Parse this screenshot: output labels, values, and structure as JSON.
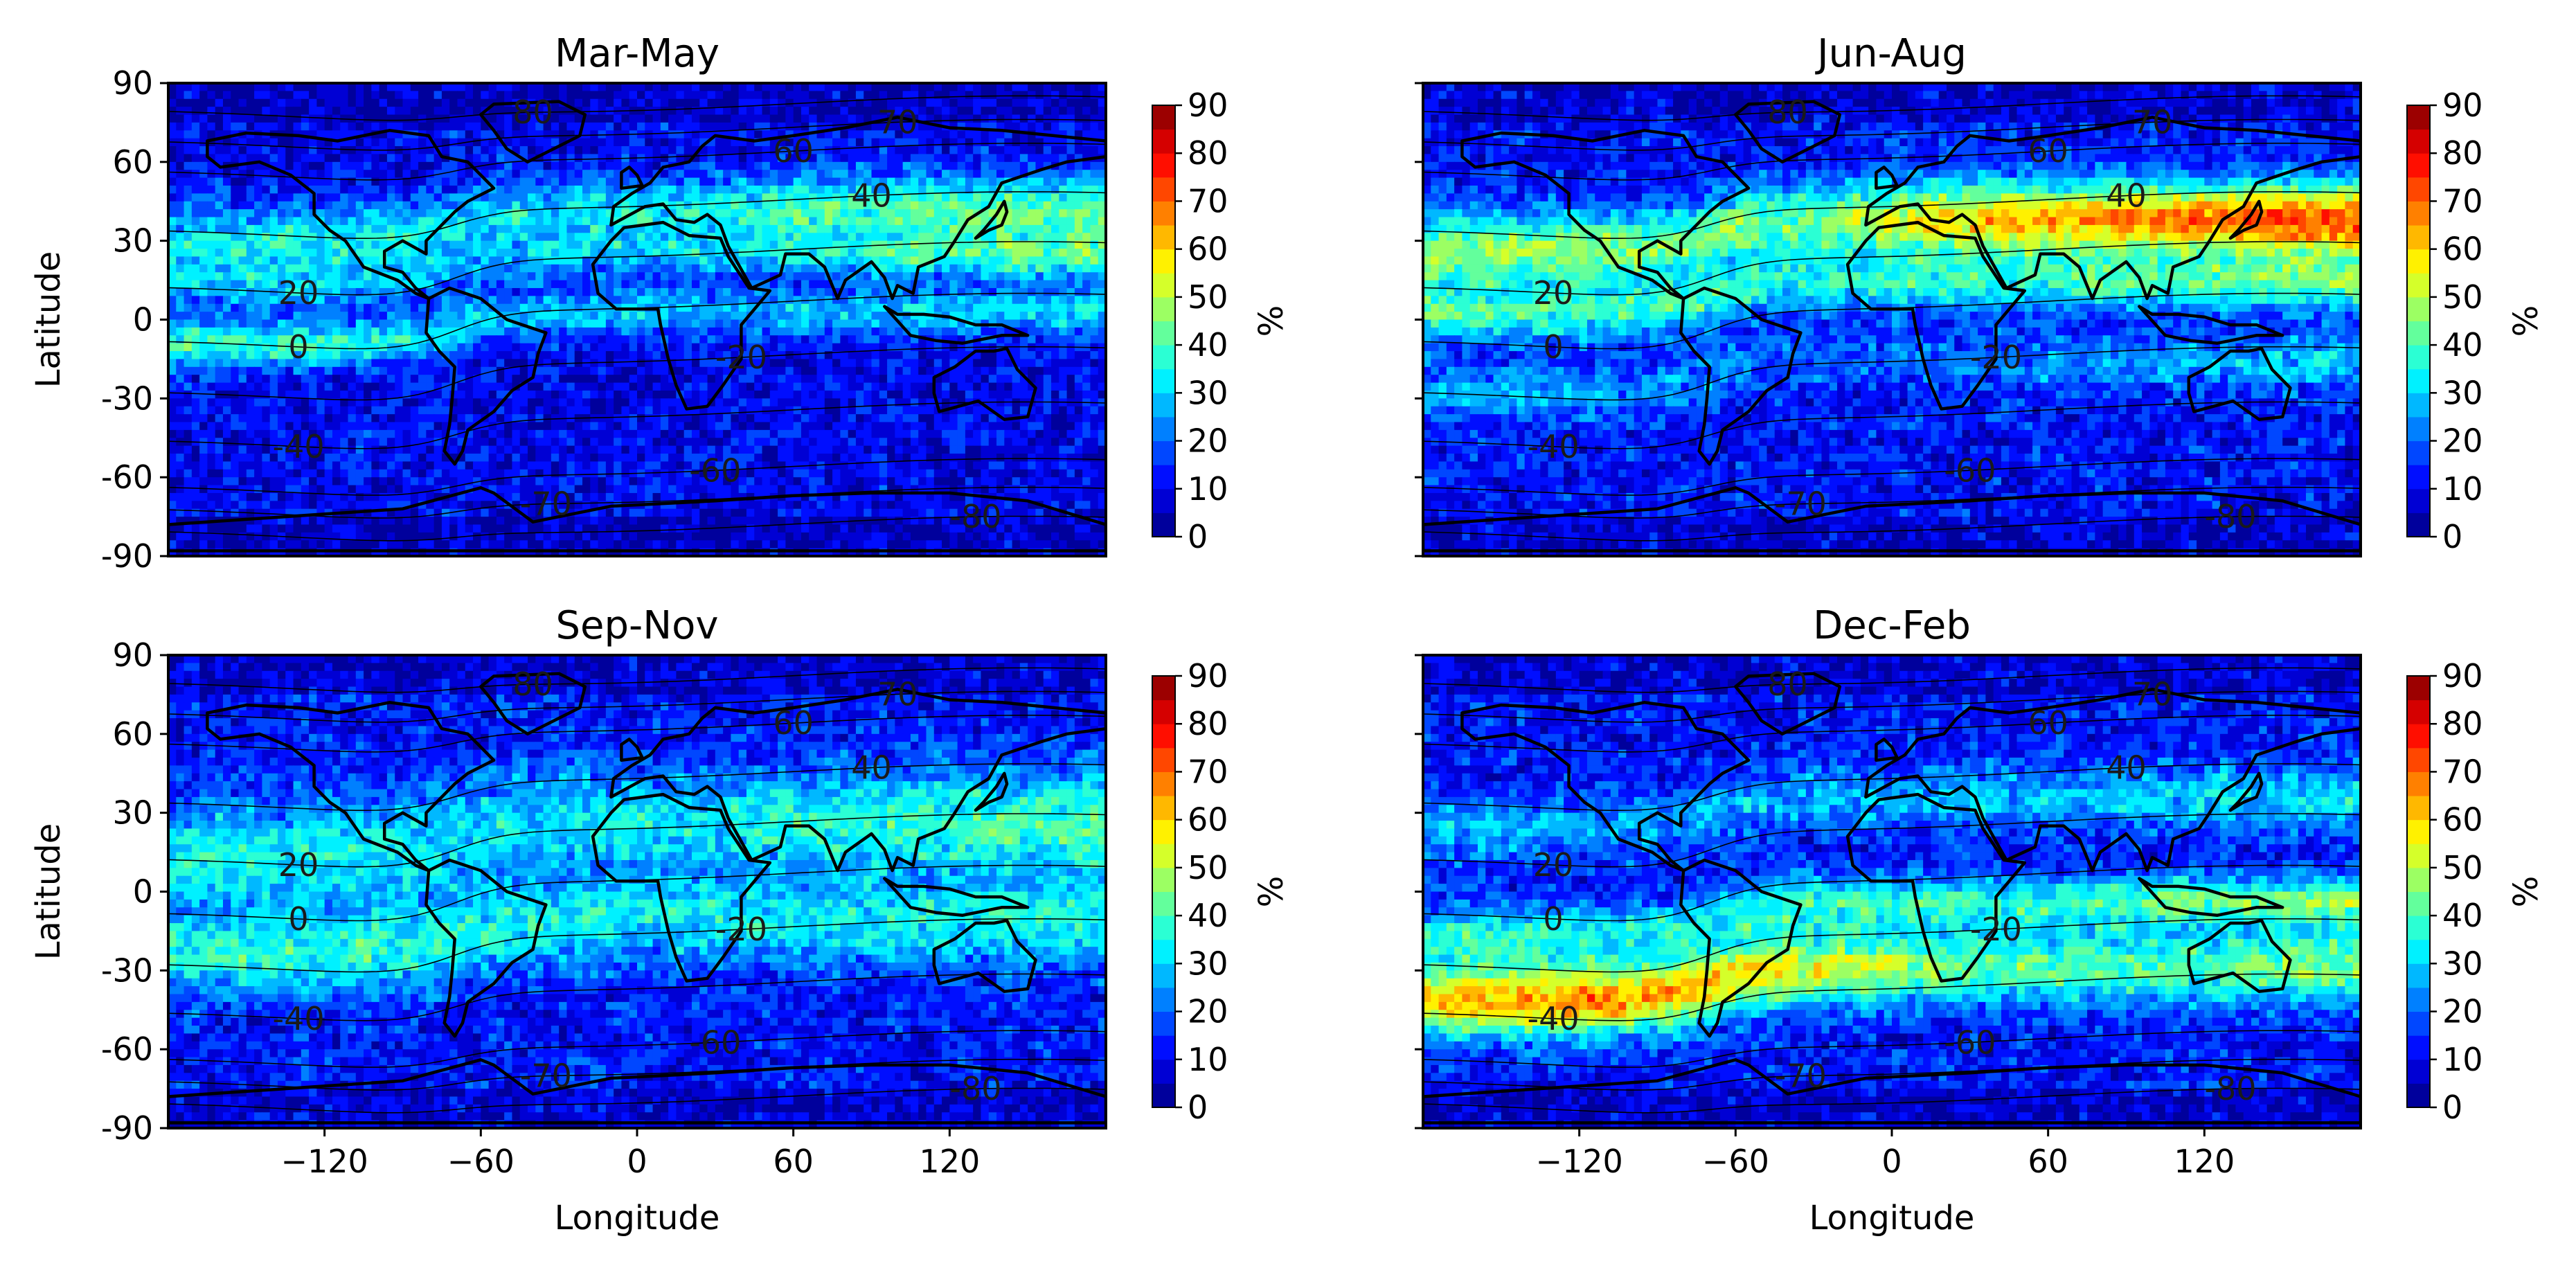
{
  "chart_data": [
    {
      "type": "heatmap",
      "title": "Mar-May",
      "xlabel": "",
      "ylabel": "Latitude",
      "xlim": [
        -180,
        180
      ],
      "ylim": [
        -90,
        90
      ],
      "xticks": [
        "",
        "",
        "",
        "",
        ""
      ],
      "yticks": [
        "90",
        "60",
        "30",
        "0",
        "-30",
        "-60",
        "-90"
      ],
      "colorbar": {
        "label": "%",
        "ticks": [
          "0",
          "10",
          "20",
          "30",
          "40",
          "50",
          "60",
          "70",
          "80",
          "90"
        ],
        "range": [
          0,
          90
        ],
        "colormap": "jet"
      },
      "contours": [
        "80",
        "70",
        "60",
        "40",
        "20",
        "0",
        "-20",
        "-40",
        "-60",
        "-70",
        "-80"
      ],
      "bands": [
        {
          "lat_center": 35,
          "lat_width": 14,
          "peak": 34,
          "lon_profile": [
            28,
            30,
            26,
            30,
            36,
            38
          ]
        },
        {
          "lat_center": -3,
          "lat_width": 9,
          "peak": 30,
          "lon_profile": [
            34,
            30,
            24,
            22,
            24,
            28
          ]
        },
        {
          "lat_center": 18,
          "lat_width": 8,
          "peak": 22,
          "lon_profile": [
            20,
            18,
            18,
            20,
            26,
            30
          ]
        }
      ],
      "background": 10
    },
    {
      "type": "heatmap",
      "title": "Jun-Aug",
      "xlabel": "",
      "ylabel": "",
      "xlim": [
        -180,
        180
      ],
      "ylim": [
        -90,
        90
      ],
      "xticks": [
        "",
        "",
        "",
        "",
        ""
      ],
      "yticks": [
        "",
        "",
        "",
        "",
        "",
        "",
        ""
      ],
      "colorbar": {
        "label": "%",
        "ticks": [
          "0",
          "10",
          "20",
          "30",
          "40",
          "50",
          "60",
          "70",
          "80",
          "90"
        ],
        "range": [
          0,
          90
        ],
        "colormap": "jet"
      },
      "contours": [
        "80",
        "70",
        "60",
        "40",
        "20",
        "0",
        "-20",
        "-40",
        "-60",
        "-70",
        "-80"
      ],
      "bands": [
        {
          "lat_center": 32,
          "lat_width": 14,
          "peak": 55,
          "lon_profile": [
            42,
            40,
            38,
            55,
            62,
            66
          ]
        },
        {
          "lat_center": 8,
          "lat_width": 10,
          "peak": 32,
          "lon_profile": [
            32,
            30,
            28,
            30,
            34,
            36
          ]
        },
        {
          "lat_center": -22,
          "lat_width": 10,
          "peak": 22,
          "lon_profile": [
            22,
            20,
            14,
            16,
            20,
            24
          ]
        }
      ],
      "background": 12
    },
    {
      "type": "heatmap",
      "title": "Sep-Nov",
      "xlabel": "Longitude",
      "ylabel": "Latitude",
      "xlim": [
        -180,
        180
      ],
      "ylim": [
        -90,
        90
      ],
      "xticks": [
        "−120",
        "−60",
        "0",
        "60",
        "120"
      ],
      "yticks": [
        "90",
        "60",
        "30",
        "0",
        "-30",
        "-60",
        "-90"
      ],
      "colorbar": {
        "label": "%",
        "ticks": [
          "0",
          "10",
          "20",
          "30",
          "40",
          "50",
          "60",
          "70",
          "80",
          "90"
        ],
        "range": [
          0,
          90
        ],
        "colormap": "jet"
      },
      "contours": [
        "80",
        "70",
        "60",
        "40",
        "20",
        "0",
        "-20",
        "-40",
        "-60",
        "-70",
        "-80"
      ],
      "bands": [
        {
          "lat_center": 20,
          "lat_width": 20,
          "peak": 30,
          "lon_profile": [
            28,
            28,
            26,
            28,
            32,
            34
          ]
        },
        {
          "lat_center": -18,
          "lat_width": 16,
          "peak": 28,
          "lon_profile": [
            30,
            30,
            28,
            26,
            28,
            30
          ]
        }
      ],
      "background": 12
    },
    {
      "type": "heatmap",
      "title": "Dec-Feb",
      "xlabel": "Longitude",
      "ylabel": "",
      "xlim": [
        -180,
        180
      ],
      "ylim": [
        -90,
        90
      ],
      "xticks": [
        "−120",
        "−60",
        "0",
        "60",
        "120"
      ],
      "yticks": [
        "",
        "",
        "",
        "",
        "",
        "",
        ""
      ],
      "colorbar": {
        "label": "%",
        "ticks": [
          "0",
          "10",
          "20",
          "30",
          "40",
          "50",
          "60",
          "70",
          "80",
          "90"
        ],
        "range": [
          0,
          90
        ],
        "colormap": "jet"
      },
      "contours": [
        "80",
        "70",
        "60",
        "40",
        "20",
        "0",
        "-20",
        "-40",
        "-60",
        "-70",
        "-80"
      ],
      "bands": [
        {
          "lat_center": -35,
          "lat_width": 14,
          "peak": 55,
          "lon_profile": [
            55,
            60,
            48,
            36,
            34,
            40
          ]
        },
        {
          "lat_center": -10,
          "lat_width": 10,
          "peak": 30,
          "lon_profile": [
            30,
            28,
            30,
            30,
            34,
            38
          ]
        },
        {
          "lat_center": 30,
          "lat_width": 12,
          "peak": 22,
          "lon_profile": [
            22,
            20,
            20,
            22,
            24,
            26
          ]
        }
      ],
      "background": 12
    }
  ]
}
